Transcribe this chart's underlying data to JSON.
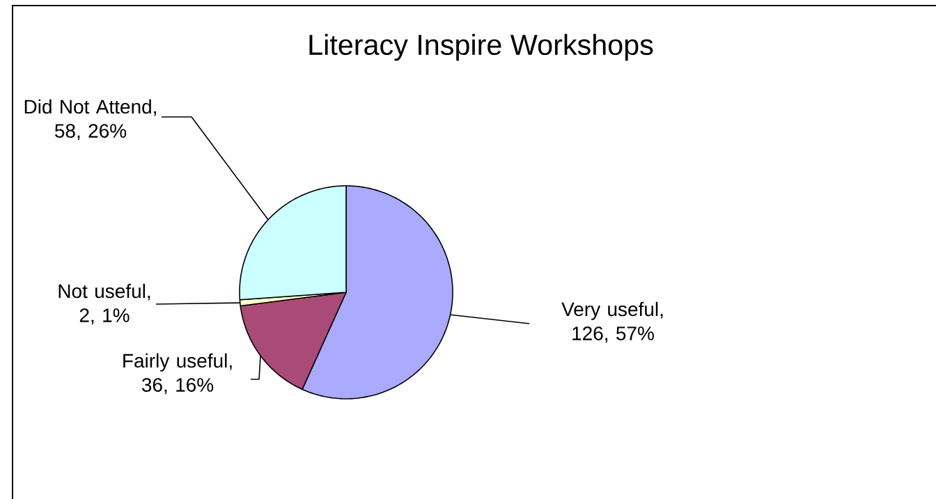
{
  "chart_data": {
    "type": "pie",
    "title": "Literacy Inspire Workshops",
    "categories": [
      "Very useful",
      "Fairly useful",
      "Not useful",
      "Did Not Attend"
    ],
    "values": [
      126,
      36,
      2,
      58
    ],
    "value_labels": [
      ", 126, 57%",
      ", 36, 16%",
      ", 2, 1%",
      ", 58, 26%"
    ],
    "colors": [
      "#aaaaff",
      "#aa4a77",
      "#ffffcc",
      "#ccffff"
    ]
  }
}
